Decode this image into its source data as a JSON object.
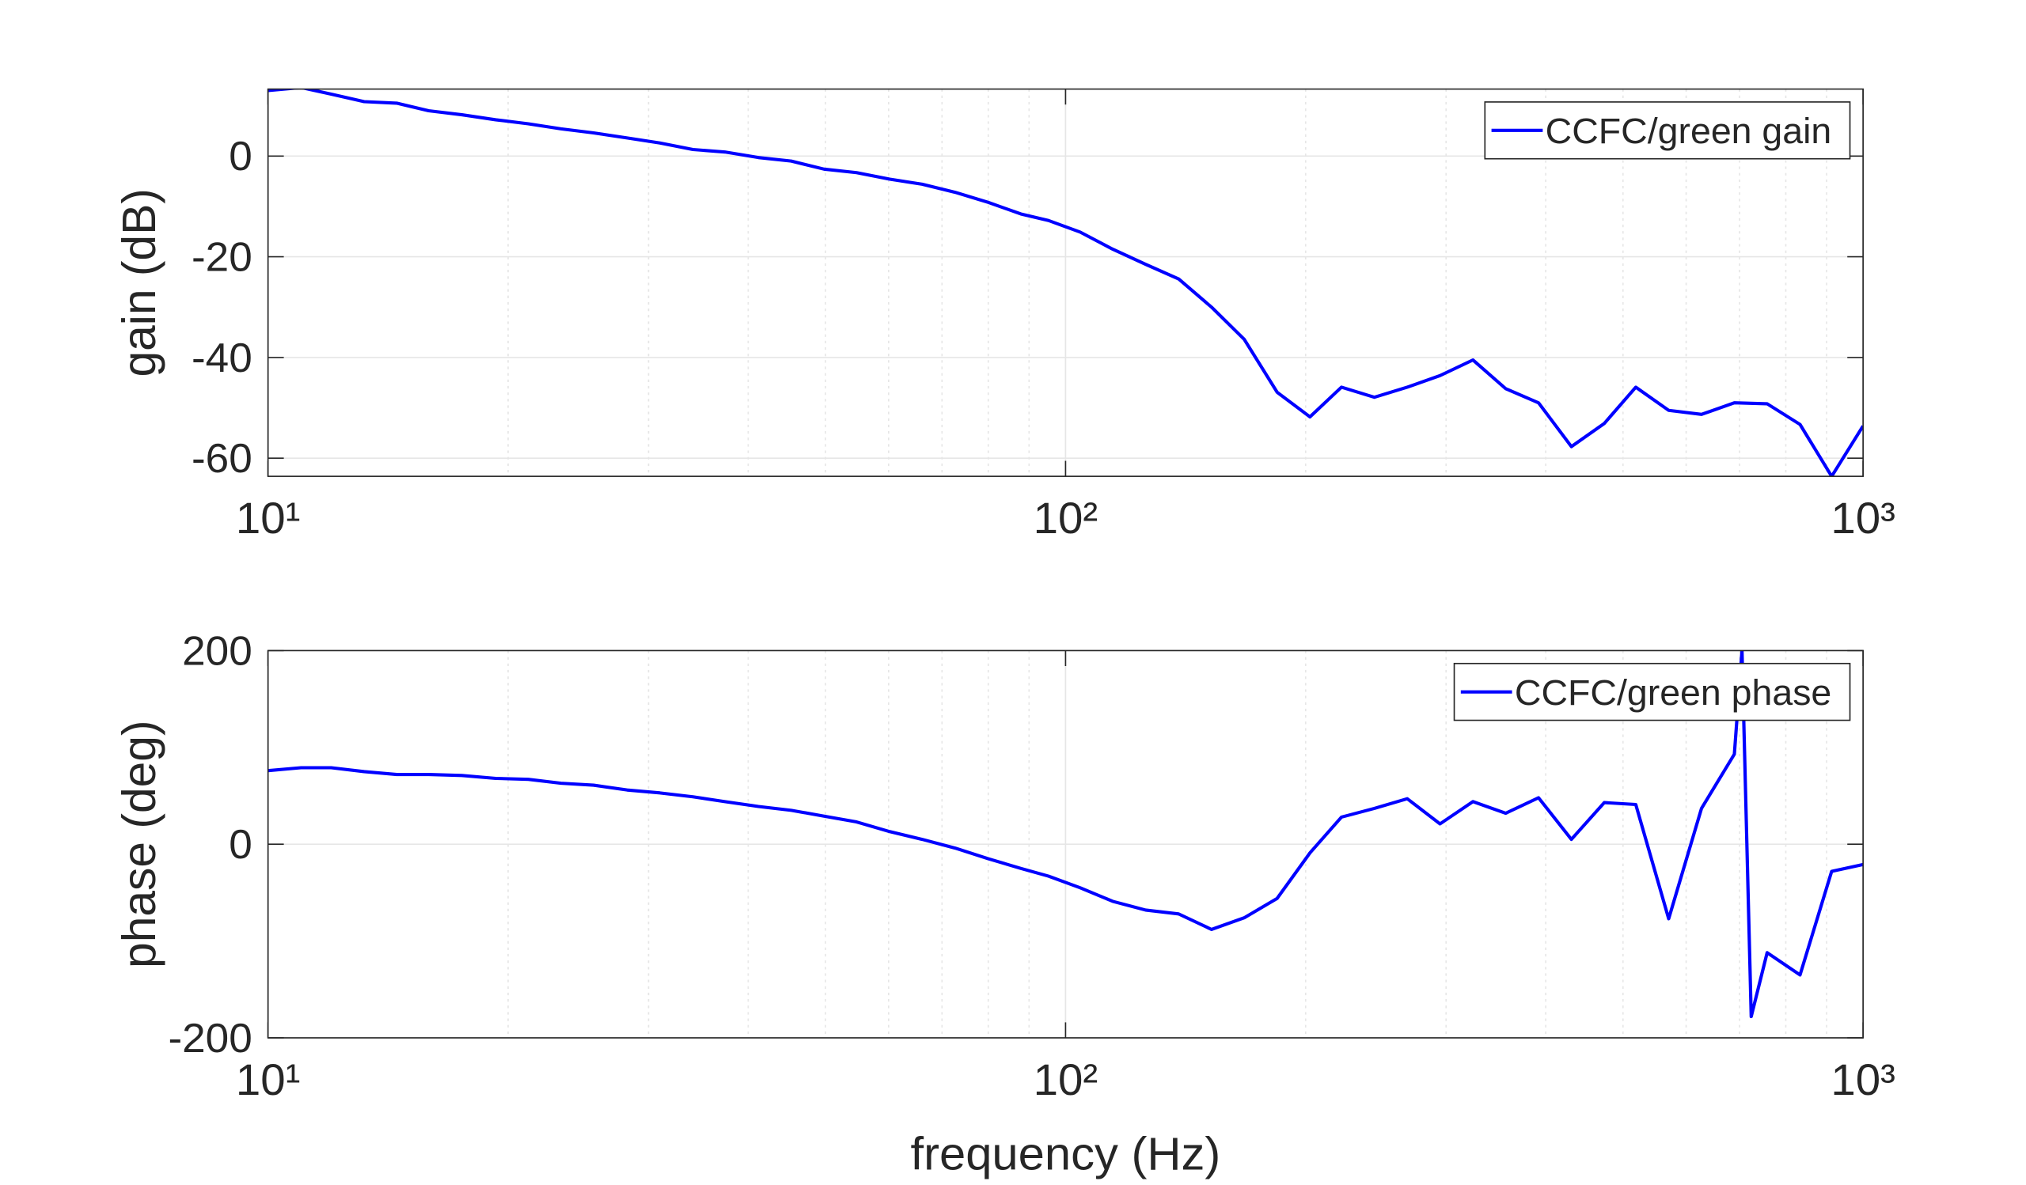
{
  "chart_data": [
    {
      "type": "line",
      "y_label": "gain (dB)",
      "x_scale": "log",
      "grid": true,
      "legend": "upper right",
      "xlim": [
        10,
        1000
      ],
      "xticks": [
        {
          "value": 10,
          "label": "10¹"
        },
        {
          "value": 100,
          "label": "10²"
        },
        {
          "value": 1000,
          "label": "10³"
        }
      ],
      "ylim": [
        -63.6,
        13.3
      ],
      "yticks": [
        -60,
        -40,
        -20,
        0
      ],
      "x": [
        10,
        11.0,
        12.0,
        13.2,
        14.5,
        15.9,
        17.5,
        19.3,
        21.2,
        23.3,
        25.6,
        28.2,
        31.0,
        34.1,
        37.4,
        41.2,
        45.3,
        49.8,
        54.7,
        60.2,
        66.1,
        72.7,
        80.0,
        87.9,
        95.2,
        104.3,
        114.6,
        126,
        138.6,
        152.4,
        167.5,
        184.2,
        202.5,
        221.8,
        243.9,
        268.2,
        294.8,
        324.2,
        356.4,
        391.8,
        430.8,
        473.7,
        518.8,
        570.5,
        627.2,
        689.6,
        758.1,
        833.6,
        913.3,
        1000
      ],
      "series": [
        {
          "name": "CCFC/green gain",
          "color": "#0000ff",
          "values": [
            13,
            13.6,
            12.3,
            10.8,
            10.5,
            9,
            8.2,
            7.2,
            6.4,
            5.4,
            4.6,
            3.6,
            2.6,
            1.3,
            0.8,
            -0.3,
            -1,
            -2.6,
            -3.3,
            -4.6,
            -5.6,
            -7.2,
            -9.2,
            -11.5,
            -12.8,
            -15.1,
            -18.5,
            -21.5,
            -24.4,
            -30,
            -36.4,
            -46.9,
            -51.8,
            -45.9,
            -47.9,
            -45.9,
            -43.6,
            -40.5,
            -46.2,
            -49,
            -57.7,
            -53.1,
            -45.9,
            -50.5,
            -51.3,
            -49,
            -49.2,
            -53.3,
            -63.6,
            -53.6
          ]
        }
      ]
    },
    {
      "type": "line",
      "x_label": "frequency (Hz)",
      "y_label": "phase (deg)",
      "x_scale": "log",
      "grid": true,
      "legend": "upper right",
      "xlim": [
        10,
        1000
      ],
      "xticks": [
        {
          "value": 10,
          "label": "10¹"
        },
        {
          "value": 100,
          "label": "10²"
        },
        {
          "value": 1000,
          "label": "10³"
        }
      ],
      "ylim": [
        -200,
        200
      ],
      "yticks": [
        -200,
        0,
        200
      ],
      "x": [
        10,
        11.0,
        12.0,
        13.2,
        14.5,
        15.9,
        17.5,
        19.3,
        21.2,
        23.3,
        25.6,
        28.2,
        31.0,
        34.1,
        37.4,
        41.2,
        45.3,
        49.8,
        54.7,
        60.2,
        66.1,
        72.7,
        80.0,
        87.9,
        95.2,
        104.3,
        114.6,
        126,
        138.6,
        152.4,
        167.5,
        184.2,
        202.5,
        221.8,
        243.9,
        268.2,
        294.8,
        324.2,
        356.4,
        391.8,
        430.8,
        473.7,
        518.8,
        570.5,
        627.2,
        689.6,
        705,
        724,
        758.1,
        833.6,
        913.3,
        1000
      ],
      "series": [
        {
          "name": "CCFC/green phase",
          "color": "#0000ff",
          "values": [
            76,
            79,
            79,
            75,
            72,
            72,
            71,
            68,
            67,
            63,
            61,
            56,
            53,
            49,
            44,
            39,
            35,
            29,
            23,
            13,
            5,
            -4,
            -15,
            -25,
            -33,
            -45,
            -59,
            -68,
            -72,
            -88,
            -76,
            -56,
            -9,
            28,
            37,
            47,
            21,
            44,
            32,
            48,
            5,
            43,
            41,
            -77,
            37,
            93,
            200,
            -178,
            -112,
            -135,
            -28,
            -21
          ]
        }
      ]
    }
  ]
}
